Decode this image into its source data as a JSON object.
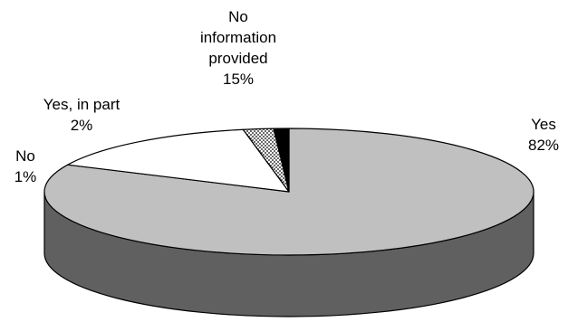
{
  "chart_data": {
    "type": "pie",
    "style": "3d",
    "slices": [
      {
        "name": "Yes",
        "value": 82,
        "value_text": "82%",
        "color": "#c0c0c0",
        "side_color": "#606060",
        "label_lines": [
          "Yes"
        ]
      },
      {
        "name": "No information provided",
        "value": 15,
        "value_text": "15%",
        "color": "#ffffff",
        "side_color": "#ffffff",
        "label_lines": [
          "No",
          "information",
          "provided"
        ]
      },
      {
        "name": "Yes, in part",
        "value": 2,
        "value_text": "2%",
        "color": "#ffffff",
        "pattern": "dotted",
        "side_color": "#606060",
        "label_lines": [
          "Yes, in part"
        ]
      },
      {
        "name": "No",
        "value": 1,
        "value_text": "1%",
        "color": "#000000",
        "side_color": "#000000",
        "label_lines": [
          "No"
        ]
      }
    ]
  }
}
